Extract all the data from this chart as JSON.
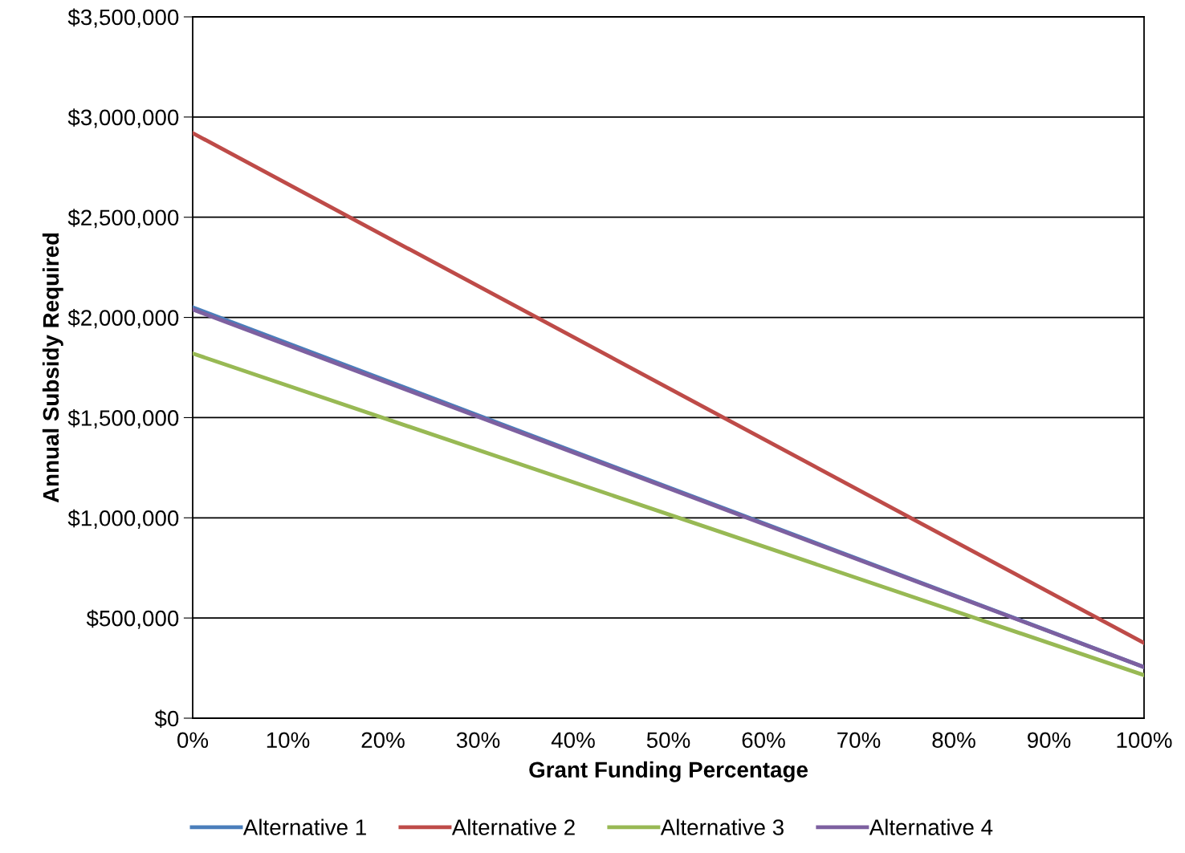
{
  "chart_data": {
    "type": "line",
    "xlabel": "Grant Funding Percentage",
    "ylabel": "Annual Subsidy Required",
    "x": [
      0,
      100
    ],
    "series": [
      {
        "name": "Alternative 1",
        "color": "#4a7ebb",
        "values": [
          2050000,
          255000
        ]
      },
      {
        "name": "Alternative 2",
        "color": "#be4b48",
        "values": [
          2920000,
          375000
        ]
      },
      {
        "name": "Alternative 3",
        "color": "#98b954",
        "values": [
          1820000,
          215000
        ]
      },
      {
        "name": "Alternative 4",
        "color": "#7d60a0",
        "values": [
          2040000,
          255000
        ]
      }
    ],
    "xlim": [
      0,
      100
    ],
    "xticks": [
      {
        "value": 0,
        "label": "0%"
      },
      {
        "value": 10,
        "label": "10%"
      },
      {
        "value": 20,
        "label": "20%"
      },
      {
        "value": 30,
        "label": "30%"
      },
      {
        "value": 40,
        "label": "40%"
      },
      {
        "value": 50,
        "label": "50%"
      },
      {
        "value": 60,
        "label": "60%"
      },
      {
        "value": 70,
        "label": "70%"
      },
      {
        "value": 80,
        "label": "80%"
      },
      {
        "value": 90,
        "label": "90%"
      },
      {
        "value": 100,
        "label": "100%"
      }
    ],
    "ylim": [
      0,
      3500000
    ],
    "yticks": [
      {
        "value": 0,
        "label": "$0"
      },
      {
        "value": 500000,
        "label": "$500,000"
      },
      {
        "value": 1000000,
        "label": "$1,000,000"
      },
      {
        "value": 1500000,
        "label": "$1,500,000"
      },
      {
        "value": 2000000,
        "label": "$2,000,000"
      },
      {
        "value": 2500000,
        "label": "$2,500,000"
      },
      {
        "value": 3000000,
        "label": "$3,000,000"
      },
      {
        "value": 3500000,
        "label": "$3,500,000"
      }
    ],
    "grid": "y",
    "legend": "bottom",
    "marker": "none",
    "line_style": "solid"
  }
}
